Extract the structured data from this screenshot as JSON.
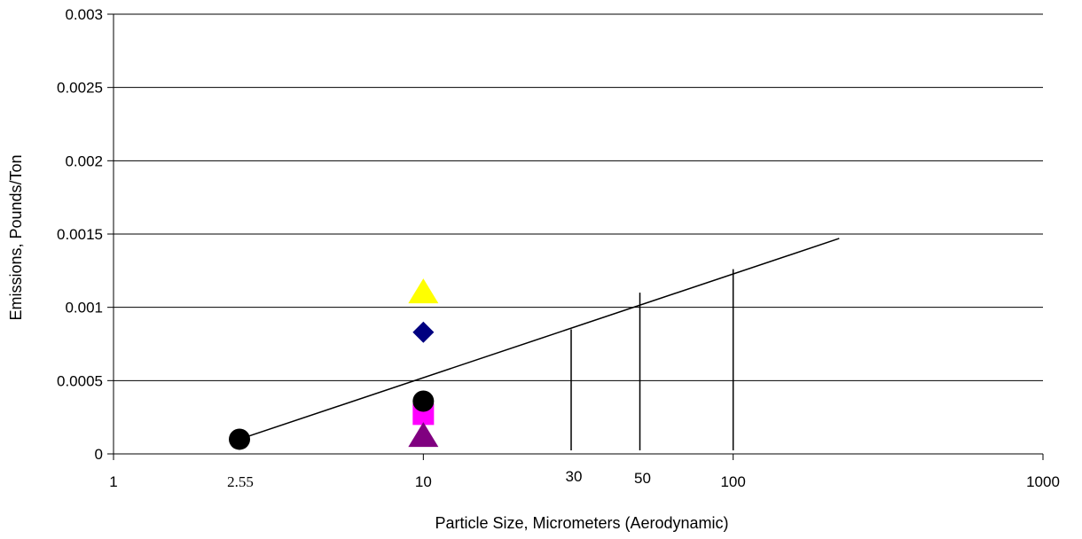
{
  "chart_data": {
    "type": "scatter",
    "title": "",
    "xlabel": "Particle Size, Micrometers (Aerodynamic)",
    "ylabel": "Emissions, Pounds/Ton",
    "x_scale": "log",
    "xlim": [
      1,
      1000
    ],
    "ylim": [
      0,
      0.003
    ],
    "grid": "horizontal",
    "legend": "none",
    "x_ticks": [
      {
        "value": 1,
        "label": "1"
      },
      {
        "value": 10,
        "label": "10"
      },
      {
        "value": 100,
        "label": "100"
      },
      {
        "value": 1000,
        "label": "1000"
      }
    ],
    "y_ticks": [
      {
        "value": 0,
        "label": "0"
      },
      {
        "value": 0.0005,
        "label": "0.0005"
      },
      {
        "value": 0.001,
        "label": "0.001"
      },
      {
        "value": 0.0015,
        "label": "0.0015"
      },
      {
        "value": 0.002,
        "label": "0.002"
      },
      {
        "value": 0.0025,
        "label": "0.0025"
      },
      {
        "value": 0.003,
        "label": "0.003"
      }
    ],
    "x_annotations": [
      {
        "value": 2.55,
        "label": "2.55"
      },
      {
        "value": 30,
        "label": "30"
      },
      {
        "value": 50,
        "label": "50"
      }
    ],
    "series": [
      {
        "marker": "triangle",
        "color": "#ffff00",
        "points": [
          [
            10,
            0.0011
          ]
        ]
      },
      {
        "marker": "diamond",
        "color": "#000080",
        "points": [
          [
            10,
            0.00083
          ]
        ]
      },
      {
        "marker": "square",
        "color": "#ff00ff",
        "points": [
          [
            10,
            0.00027
          ]
        ]
      },
      {
        "marker": "triangle",
        "color": "#800080",
        "points": [
          [
            10,
            0.00012
          ]
        ]
      },
      {
        "marker": "circle",
        "color": "#000000",
        "points": [
          [
            2.55,
            0.0001
          ],
          [
            10,
            0.00036
          ]
        ]
      }
    ],
    "trend_line": {
      "color": "#000000",
      "points": [
        [
          2.55,
          0.0001
        ],
        [
          220,
          0.00147
        ]
      ]
    },
    "drop_lines": [
      {
        "x": 30,
        "y": 0.00085
      },
      {
        "x": 50,
        "y": 0.0011
      },
      {
        "x": 100,
        "y": 0.00126
      }
    ]
  }
}
